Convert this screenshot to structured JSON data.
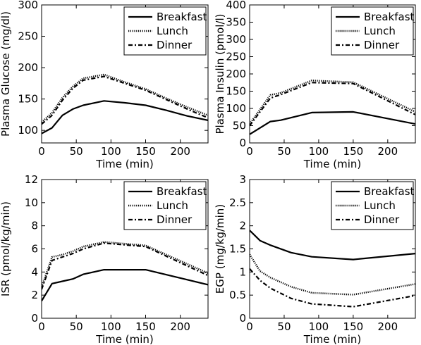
{
  "chart_data": [
    {
      "type": "line",
      "xlabel": "Time (min)",
      "ylabel": "Plasma Glucose (mg/dl)",
      "xlim": [
        0,
        240
      ],
      "ylim": [
        80,
        300
      ],
      "xticks": [
        "0",
        "50",
        "100",
        "150",
        "200"
      ],
      "yticks": [
        "100",
        "150",
        "200",
        "250",
        "300"
      ],
      "grid": false,
      "legend_position": "top-right",
      "x": [
        0,
        15,
        30,
        45,
        60,
        90,
        120,
        150,
        180,
        210,
        240
      ],
      "series": [
        {
          "name": "Breakfast",
          "style": "solid",
          "values": [
            95,
            104,
            124,
            134,
            140,
            147,
            144,
            140,
            132,
            123,
            116
          ]
        },
        {
          "name": "Lunch",
          "style": "dotted",
          "values": [
            113,
            128,
            152,
            170,
            183,
            189,
            177,
            166,
            151,
            137,
            124
          ]
        },
        {
          "name": "Dinner",
          "style": "dashdot",
          "values": [
            110,
            124,
            148,
            167,
            180,
            186,
            175,
            164,
            149,
            134,
            120
          ]
        }
      ]
    },
    {
      "type": "line",
      "xlabel": "Time (min)",
      "ylabel": "Plasma Insulin (pmol/l)",
      "xlim": [
        0,
        240
      ],
      "ylim": [
        0,
        400
      ],
      "xticks": [
        "0",
        "50",
        "100",
        "150",
        "200"
      ],
      "yticks": [
        "0",
        "50",
        "100",
        "150",
        "200",
        "250",
        "300",
        "350",
        "400"
      ],
      "grid": false,
      "legend_position": "top-right",
      "x": [
        0,
        30,
        45,
        90,
        150,
        240
      ],
      "series": [
        {
          "name": "Breakfast",
          "style": "solid",
          "values": [
            25,
            62,
            66,
            88,
            90,
            55
          ]
        },
        {
          "name": "Lunch",
          "style": "dotted",
          "values": [
            55,
            139,
            145,
            181,
            176,
            90
          ]
        },
        {
          "name": "Dinner",
          "style": "dashdot",
          "values": [
            50,
            130,
            140,
            175,
            172,
            82
          ]
        }
      ]
    },
    {
      "type": "line",
      "xlabel": "Time (min)",
      "ylabel": "ISR (pmol/kg/min)",
      "xlim": [
        0,
        240
      ],
      "ylim": [
        0,
        12
      ],
      "xticks": [
        "0",
        "50",
        "100",
        "150",
        "200"
      ],
      "yticks": [
        "0",
        "2",
        "4",
        "6",
        "8",
        "10",
        "12"
      ],
      "grid": false,
      "legend_position": "top-right",
      "x": [
        0,
        15,
        30,
        45,
        60,
        90,
        150,
        240
      ],
      "series": [
        {
          "name": "Breakfast",
          "style": "solid",
          "values": [
            1.5,
            3.0,
            3.2,
            3.4,
            3.8,
            4.2,
            4.2,
            2.9
          ]
        },
        {
          "name": "Lunch",
          "style": "dotted",
          "values": [
            2.7,
            5.3,
            5.5,
            5.8,
            6.2,
            6.6,
            6.3,
            3.9
          ]
        },
        {
          "name": "Dinner",
          "style": "dashdot",
          "values": [
            2.5,
            5.0,
            5.3,
            5.6,
            6.0,
            6.5,
            6.2,
            3.7
          ]
        }
      ]
    },
    {
      "type": "line",
      "xlabel": "Time (min)",
      "ylabel": "EGP (mg/kg/min)",
      "xlim": [
        0,
        240
      ],
      "ylim": [
        0,
        3
      ],
      "xticks": [
        "0",
        "50",
        "100",
        "150",
        "200"
      ],
      "yticks": [
        "0",
        "0.5",
        "1",
        "1.5",
        "2",
        "2.5",
        "3"
      ],
      "grid": false,
      "legend_position": "top-right",
      "x": [
        0,
        15,
        30,
        60,
        90,
        150,
        240
      ],
      "series": [
        {
          "name": "Breakfast",
          "style": "solid",
          "values": [
            1.9,
            1.68,
            1.58,
            1.42,
            1.33,
            1.27,
            1.4
          ]
        },
        {
          "name": "Lunch",
          "style": "dotted",
          "values": [
            1.38,
            1.02,
            0.88,
            0.68,
            0.55,
            0.51,
            0.74
          ]
        },
        {
          "name": "Dinner",
          "style": "dashdot",
          "values": [
            1.07,
            0.82,
            0.65,
            0.43,
            0.31,
            0.25,
            0.49
          ]
        }
      ]
    }
  ]
}
